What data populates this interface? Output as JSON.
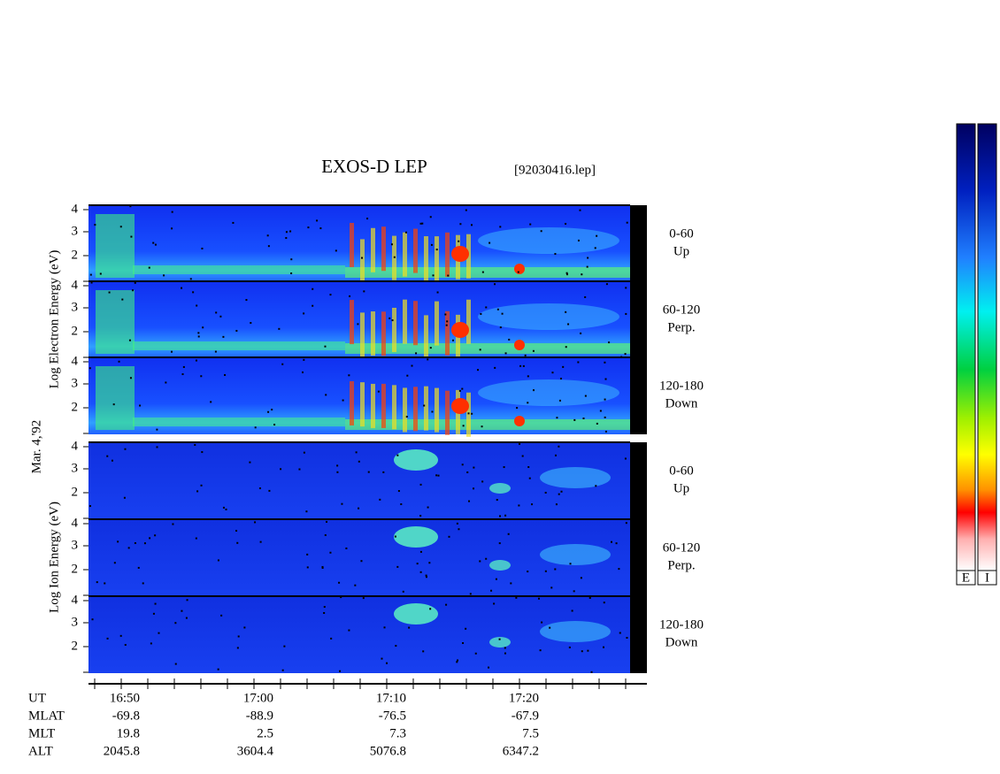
{
  "header": {
    "title": "EXOS-D LEP",
    "file": "[92030416.lep]"
  },
  "date": "Mar. 4,'92",
  "electron": {
    "axis_label": "Log Electron Energy (eV)",
    "panels": [
      {
        "ticks": [
          "4",
          "3",
          "2"
        ],
        "pitch": "0-60",
        "direction": "Up"
      },
      {
        "ticks": [
          "4",
          "3",
          "2"
        ],
        "pitch": "60-120",
        "direction": "Perp."
      },
      {
        "ticks": [
          "4",
          "3",
          "2"
        ],
        "pitch": "120-180",
        "direction": "Down"
      }
    ]
  },
  "ion": {
    "axis_label": "Log Ion Energy (eV)",
    "panels": [
      {
        "ticks": [
          "4",
          "3",
          "2"
        ],
        "pitch": "0-60",
        "direction": "Up"
      },
      {
        "ticks": [
          "4",
          "3",
          "2"
        ],
        "pitch": "60-120",
        "direction": "Perp."
      },
      {
        "ticks": [
          "4",
          "3",
          "2"
        ],
        "pitch": "120-180",
        "direction": "Down"
      }
    ]
  },
  "ephemeris": {
    "labels": [
      "UT",
      "MLAT",
      "MLT",
      "ALT"
    ],
    "values": [
      [
        "16:50",
        "17:00",
        "17:10",
        "17:20"
      ],
      [
        "-69.8",
        "-88.9",
        "-76.5",
        "-67.9"
      ],
      [
        "19.8",
        "2.5",
        "7.3",
        "7.5"
      ],
      [
        "2045.8",
        "3604.4",
        "5076.8",
        "6347.2"
      ]
    ]
  },
  "colorbars": [
    "E",
    "I"
  ]
}
